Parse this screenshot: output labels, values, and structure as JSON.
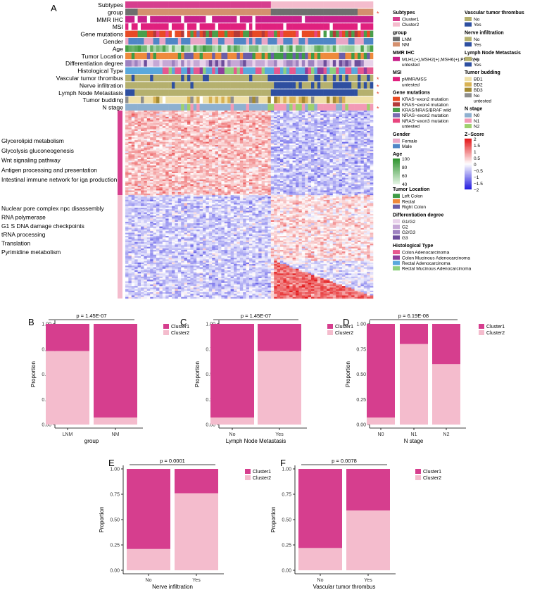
{
  "panel_letters": [
    "A",
    "B",
    "C",
    "D",
    "E",
    "F"
  ],
  "heatmap": {
    "track_labels": [
      "Subtypes",
      "group",
      "MMR IHC",
      "MSI",
      "Gene mutations",
      "Gender",
      "Age",
      "Tumor Location",
      "Differentiation degree",
      "Histological Type",
      "Vascular tumor thrombus",
      "Nerve infiltration",
      "Lymph Node Metastasis",
      "Tumor budding",
      "N stage"
    ],
    "significance_marks": [
      "*",
      "*",
      "*",
      "*",
      "*",
      "*"
    ],
    "pathways_top": [
      "Glycerolipid metabolism",
      "Glycolysis gluconeogenesis",
      "Wnt signaling pathway",
      "Antigen processing and presentation",
      "Intestinal immune network for iga production"
    ],
    "pathways_bottom": [
      "Nuclear pore complex npc disassembly",
      "RNA polymerase",
      "G1 S DNA damage checkpoints",
      "tRNA processing",
      "Translation",
      "Pyrimidine metabolism"
    ],
    "legend_col1": [
      {
        "title": "Subtypes",
        "items": [
          {
            "label": "Cluster1",
            "color": "#d63e8e"
          },
          {
            "label": "Cluster2",
            "color": "#f4bccd"
          }
        ]
      },
      {
        "title": "group",
        "items": [
          {
            "label": "LNM",
            "color": "#6e6e6e"
          },
          {
            "label": "NM",
            "color": "#d4906e"
          }
        ]
      },
      {
        "title": "MMR IHC",
        "items": [
          {
            "label": "MLH1(+),MSH2(+),MSH6(+),PMS2(+)",
            "color": "#c8208a"
          },
          {
            "label": "untested",
            "color": "#ffffff"
          }
        ]
      },
      {
        "title": "MSI",
        "items": [
          {
            "label": "pMMR/MSS",
            "color": "#e0207e"
          },
          {
            "label": "untested",
            "color": "#ffffff"
          }
        ]
      },
      {
        "title": "Gene mutations",
        "items": [
          {
            "label": "KRAS−exon2 mutation",
            "color": "#e84a24"
          },
          {
            "label": "KRAS−exon4 mutation",
            "color": "#b33a3a"
          },
          {
            "label": "KRAS/NRAS/BRAF wild",
            "color": "#4a9e4a"
          },
          {
            "label": "NRAS−exon2 mutation",
            "color": "#7a6bb0"
          },
          {
            "label": "NRAS−exon3 mutation",
            "color": "#e8457e"
          },
          {
            "label": "untested",
            "color": "#ffffff"
          }
        ]
      },
      {
        "title": "Gender",
        "items": [
          {
            "label": "Female",
            "color": "#e9a6c6"
          },
          {
            "label": "Male",
            "color": "#4f86c6"
          }
        ]
      },
      {
        "title": "Age",
        "items": [
          {
            "label": "100"
          },
          {
            "label": "80"
          },
          {
            "label": "60"
          },
          {
            "label": "40"
          }
        ]
      },
      {
        "title": "Tumor Location",
        "items": [
          {
            "label": "Left Colon",
            "color": "#3e9b45"
          },
          {
            "label": "Rectal",
            "color": "#ee8a3c"
          },
          {
            "label": "Right Colon",
            "color": "#6a5ea8"
          }
        ]
      },
      {
        "title": "Differentiation degree",
        "items": [
          {
            "label": "G1/G2",
            "color": "#e8d2ea"
          },
          {
            "label": "G2",
            "color": "#c6a8d6"
          },
          {
            "label": "G2/G3",
            "color": "#9e82c0"
          },
          {
            "label": "G3",
            "color": "#6e4e9c"
          }
        ]
      },
      {
        "title": "Histological Type",
        "items": [
          {
            "label": "Colon Adenocarcinoma",
            "color": "#e7588f"
          },
          {
            "label": "Colon Mucinous Adenocarcinoma",
            "color": "#8e3e9c"
          },
          {
            "label": "Rectal Adenocarcinoma",
            "color": "#5aa8dc"
          },
          {
            "label": "Rectal Mucinous Adenocarcinoma",
            "color": "#8ed07e"
          }
        ]
      }
    ],
    "legend_col2": [
      {
        "title": "Vascular tumor thrombus",
        "items": [
          {
            "label": "No",
            "color": "#b5b06e"
          },
          {
            "label": "Yes",
            "color": "#2e4fa0"
          }
        ]
      },
      {
        "title": "Nerve infiltration",
        "items": [
          {
            "label": "No",
            "color": "#b5b06e"
          },
          {
            "label": "Yes",
            "color": "#2e4fa0"
          }
        ]
      },
      {
        "title": "Lymph Node Metastasis",
        "items": [
          {
            "label": "No",
            "color": "#b5b06e"
          },
          {
            "label": "Yes",
            "color": "#2e4fa0"
          }
        ]
      },
      {
        "title": "Tumor budding",
        "items": [
          {
            "label": "BD1",
            "color": "#efe0a8"
          },
          {
            "label": "BD2",
            "color": "#d9b254"
          },
          {
            "label": "BD3",
            "color": "#a48a32"
          },
          {
            "label": "No",
            "color": "#8e8e8e"
          },
          {
            "label": "untested",
            "color": "#ffffff"
          }
        ]
      },
      {
        "title": "N stage",
        "items": [
          {
            "label": "N0",
            "color": "#8eb0d0"
          },
          {
            "label": "N1",
            "color": "#f29ab6"
          },
          {
            "label": "N2",
            "color": "#9ed06e"
          }
        ]
      },
      {
        "title": "Z−Score",
        "items": [
          {
            "label": "2"
          },
          {
            "label": "1.5"
          },
          {
            "label": "1"
          },
          {
            "label": "0.5"
          },
          {
            "label": "0"
          },
          {
            "label": "−0.5"
          },
          {
            "label": "−1"
          },
          {
            "label": "−1.5"
          },
          {
            "label": "−2"
          }
        ]
      }
    ]
  },
  "chart_data": [
    {
      "panel": "B",
      "type": "bar",
      "stacked": true,
      "categories": [
        "LNM",
        "NM"
      ],
      "series": [
        {
          "name": "Cluster1",
          "values": [
            0.27,
            0.93
          ]
        },
        {
          "name": "Cluster2",
          "values": [
            0.73,
            0.07
          ]
        }
      ],
      "title": "p = 1.45E-07",
      "xlabel": "group",
      "ylabel": "Proportion",
      "ylim": [
        0,
        1
      ],
      "yticks": [
        "0.00",
        "0.25",
        "0.50",
        "0.75",
        "1.00"
      ],
      "legend": "right"
    },
    {
      "panel": "C",
      "type": "bar",
      "stacked": true,
      "categories": [
        "No",
        "Yes"
      ],
      "series": [
        {
          "name": "Cluster1",
          "values": [
            0.93,
            0.27
          ]
        },
        {
          "name": "Cluster2",
          "values": [
            0.07,
            0.73
          ]
        }
      ],
      "title": "p = 1.45E-07",
      "xlabel": "Lymph Node Metastasis",
      "ylabel": "Proportion",
      "ylim": [
        0,
        1
      ],
      "yticks": [
        "0.00",
        "0.25",
        "0.50",
        "0.75",
        "1.00"
      ],
      "legend": "right"
    },
    {
      "panel": "D",
      "type": "bar",
      "stacked": true,
      "categories": [
        "N0",
        "N1",
        "N2"
      ],
      "series": [
        {
          "name": "Cluster1",
          "values": [
            0.93,
            0.2,
            0.4
          ]
        },
        {
          "name": "Cluster2",
          "values": [
            0.07,
            0.8,
            0.6
          ]
        }
      ],
      "title": "p = 6.19E-08",
      "xlabel": "N stage",
      "ylabel": "Proportion",
      "ylim": [
        0,
        1
      ],
      "yticks": [
        "0.00",
        "0.25",
        "0.50",
        "0.75",
        "1.00"
      ],
      "legend": "right"
    },
    {
      "panel": "E",
      "type": "bar",
      "stacked": true,
      "categories": [
        "No",
        "Yes"
      ],
      "series": [
        {
          "name": "Cluster1",
          "values": [
            0.79,
            0.24
          ]
        },
        {
          "name": "Cluster2",
          "values": [
            0.21,
            0.76
          ]
        }
      ],
      "title": "p = 0.0001",
      "xlabel": "Nerve infiltration",
      "ylabel": "Proportion",
      "ylim": [
        0,
        1
      ],
      "yticks": [
        "0.00",
        "0.25",
        "0.50",
        "0.75",
        "1.00"
      ],
      "legend": "right"
    },
    {
      "panel": "F",
      "type": "bar",
      "stacked": true,
      "categories": [
        "No",
        "Yes"
      ],
      "series": [
        {
          "name": "Cluster1",
          "values": [
            0.78,
            0.41
          ]
        },
        {
          "name": "Cluster2",
          "values": [
            0.22,
            0.59
          ]
        }
      ],
      "title": "p = 0.0078",
      "xlabel": "Vascular tumor thrombus",
      "ylabel": "Proportion",
      "ylim": [
        0,
        1
      ],
      "yticks": [
        "0.00",
        "0.25",
        "0.50",
        "0.75",
        "1.00"
      ],
      "legend": "right"
    }
  ],
  "colors": {
    "cluster1": "#d63e8e",
    "cluster2": "#f4bccd",
    "axis": "#000000",
    "z_high": "#e41a1c",
    "z_mid": "#ffffff",
    "z_low": "#2a22e0"
  }
}
